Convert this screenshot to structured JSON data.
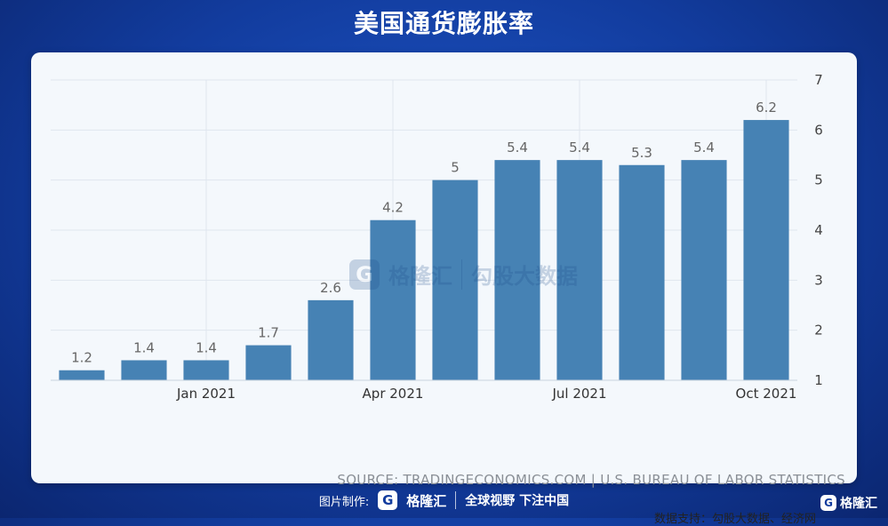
{
  "page": {
    "title": "美国通货膨胀率",
    "source": "SOURCE: TRADINGECONOMICS.COM | U.S. BUREAU OF LABOR STATISTICS",
    "data_support": "数据支持：勾股大数据、经济网"
  },
  "watermark": {
    "glyph": "G",
    "brand": "格隆汇",
    "product": "勾股大数据"
  },
  "footer": {
    "made_by_label": "图片制作:",
    "logo_glyph": "G",
    "logo_text": "格隆汇",
    "slogan": "全球视野 下注中国",
    "corner_logo_text": "格隆汇"
  },
  "chart_data": {
    "type": "bar",
    "title": "美国通货膨胀率",
    "categories": [
      "2020-11",
      "2020-12",
      "2021-01",
      "2021-02",
      "2021-03",
      "2021-04",
      "2021-05",
      "2021-06",
      "2021-07",
      "2021-08",
      "2021-09",
      "2021-10"
    ],
    "values": [
      1.2,
      1.4,
      1.4,
      1.7,
      2.6,
      4.2,
      5.0,
      5.4,
      5.4,
      5.3,
      5.4,
      6.2
    ],
    "data_labels": [
      "1.2",
      "1.4",
      "1.4",
      "1.7",
      "2.6",
      "4.2",
      "5",
      "5.4",
      "5.4",
      "5.3",
      "5.4",
      "6.2"
    ],
    "x_tick_labels": [
      {
        "category": "2021-01",
        "label": "Jan 2021"
      },
      {
        "category": "2021-04",
        "label": "Apr 2021"
      },
      {
        "category": "2021-07",
        "label": "Jul 2021"
      },
      {
        "category": "2021-10",
        "label": "Oct 2021"
      }
    ],
    "y_ticks": [
      1,
      2,
      3,
      4,
      5,
      6,
      7
    ],
    "ylim": [
      1,
      7
    ],
    "y_axis_side": "right",
    "grid": true,
    "bar_color": "#4682b4",
    "xlabel": "",
    "ylabel": ""
  }
}
